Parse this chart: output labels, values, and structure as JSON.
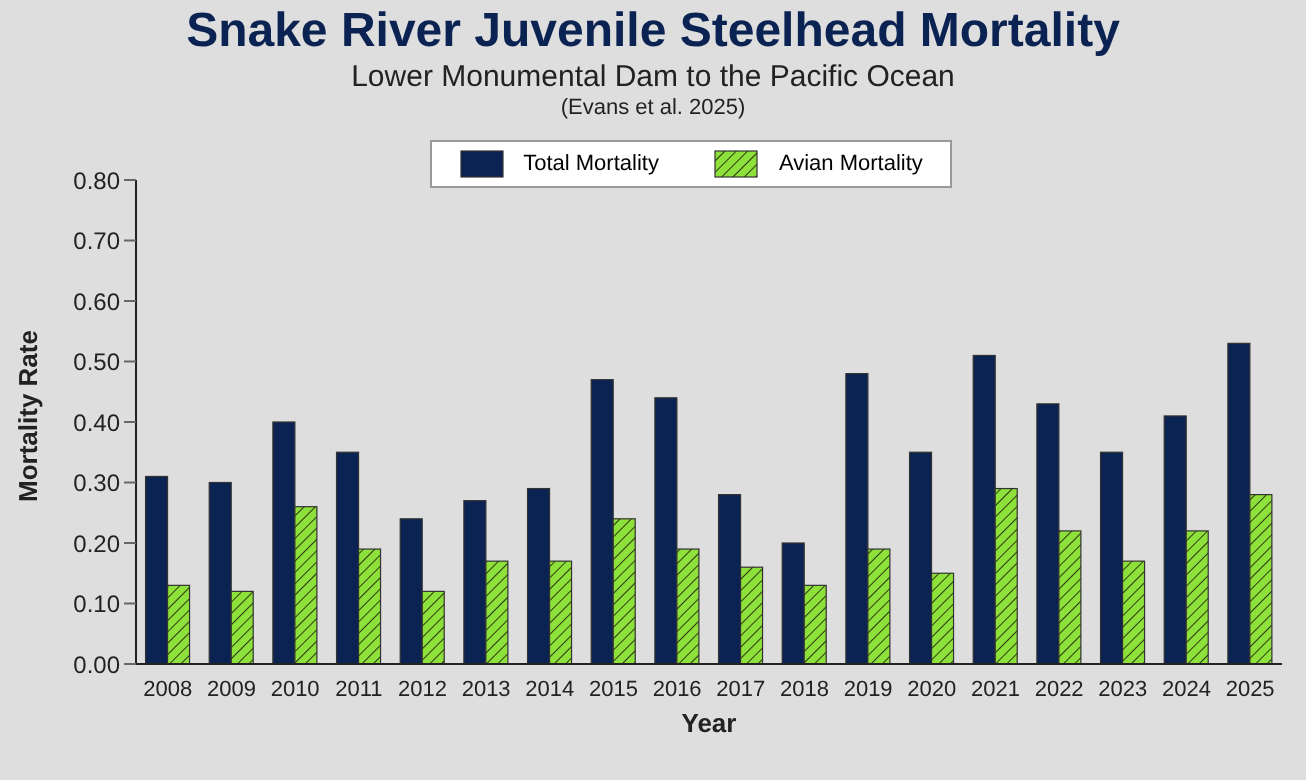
{
  "chart_data": {
    "type": "bar",
    "title": "Snake River Juvenile Steelhead Mortality",
    "subtitle": "Lower Monumental Dam to the Pacific Ocean",
    "annotations": [
      "(Evans et al. 2025)"
    ],
    "xlabel": "Year",
    "ylabel": "Mortality Rate",
    "categories": [
      "2008",
      "2009",
      "2010",
      "2011",
      "2012",
      "2013",
      "2014",
      "2015",
      "2016",
      "2017",
      "2018",
      "2019",
      "2020",
      "2021",
      "2022",
      "2023",
      "2024",
      "2025"
    ],
    "series": [
      {
        "name": "Total Mortality",
        "color": "#0b2352",
        "values": [
          0.31,
          0.3,
          0.4,
          0.35,
          0.24,
          0.27,
          0.29,
          0.47,
          0.44,
          0.28,
          0.2,
          0.48,
          0.35,
          0.51,
          0.43,
          0.35,
          0.41,
          0.53
        ]
      },
      {
        "name": "Avian Mortality",
        "color": "#8ee03a",
        "values": [
          0.13,
          0.12,
          0.26,
          0.19,
          0.12,
          0.17,
          0.17,
          0.24,
          0.19,
          0.16,
          0.13,
          0.19,
          0.15,
          0.29,
          0.22,
          0.17,
          0.22,
          0.28
        ]
      }
    ],
    "ylim": [
      0,
      0.8
    ],
    "yticks": [
      {
        "value": 0,
        "label": "0.00"
      },
      {
        "value": 0.1,
        "label": "0.10"
      },
      {
        "value": 0.2,
        "label": "0.20"
      },
      {
        "value": 0.3,
        "label": "0.30"
      },
      {
        "value": 0.4,
        "label": "0.40"
      },
      {
        "value": 0.5,
        "label": "0.50"
      },
      {
        "value": 0.6,
        "label": "0.60"
      },
      {
        "value": 0.7,
        "label": "0.70"
      },
      {
        "value": 0.8,
        "label": "0.80"
      }
    ],
    "grid": false,
    "legend": "top"
  }
}
